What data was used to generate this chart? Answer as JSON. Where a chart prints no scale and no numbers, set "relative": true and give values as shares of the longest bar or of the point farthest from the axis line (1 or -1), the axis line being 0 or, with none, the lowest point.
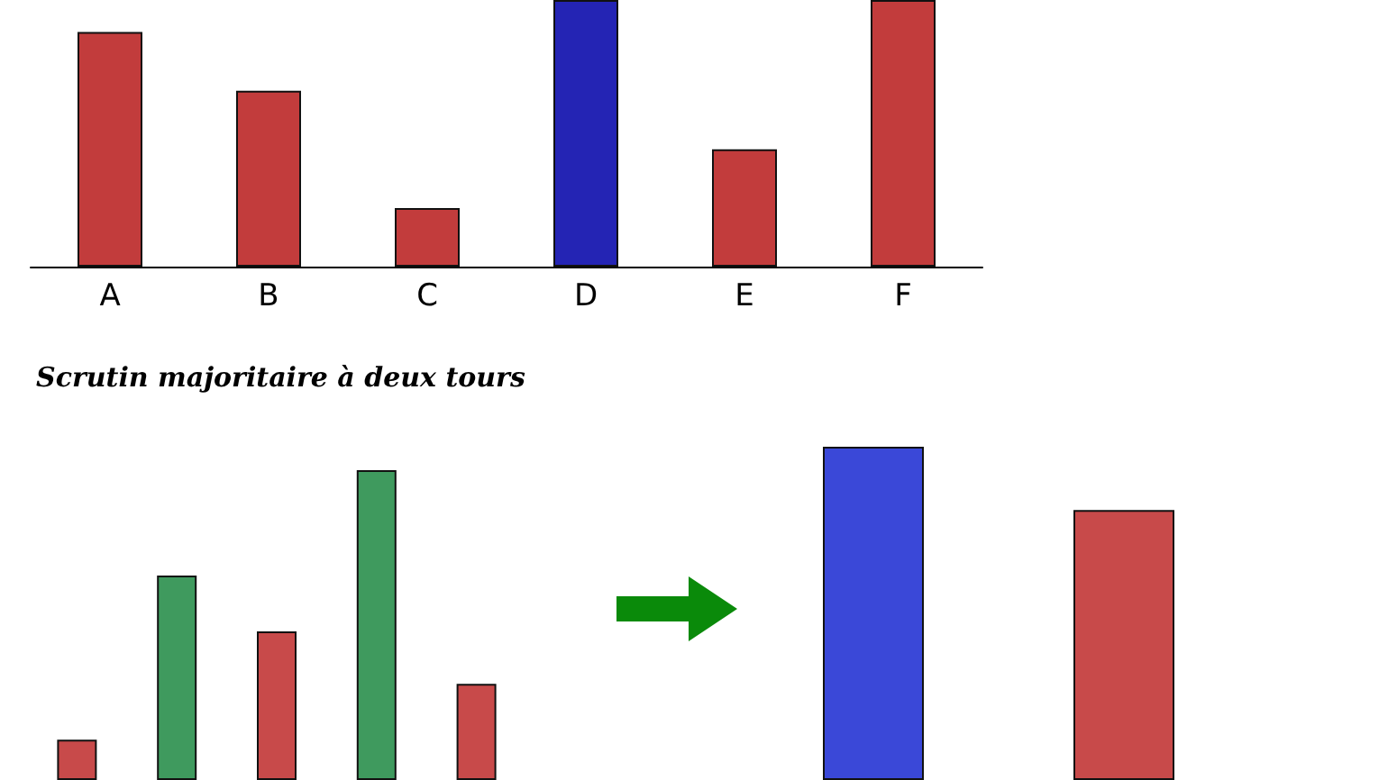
{
  "chart_data": [
    {
      "type": "bar",
      "relative": true,
      "categories": [
        "A",
        "B",
        "C",
        "D",
        "E",
        "F"
      ],
      "values": [
        0.88,
        0.66,
        0.22,
        1,
        0.44,
        1
      ],
      "colors": [
        "#c23c3c",
        "#c23c3c",
        "#c23c3c",
        "#2424b4",
        "#c23c3c",
        "#c23c3c"
      ]
    },
    {
      "type": "bar",
      "relative": true,
      "title": "Scrutin majoritaire à deux tours",
      "categories": [
        null,
        null,
        null,
        null,
        null
      ],
      "values": [
        0.13,
        0.66,
        0.48,
        1,
        0.31
      ],
      "colors": [
        "#c84a4a",
        "#3f9a5e",
        "#c84a4a",
        "#3f9a5e",
        "#c84a4a"
      ]
    },
    {
      "type": "bar",
      "relative": true,
      "categories": [
        null,
        null
      ],
      "values": [
        1,
        0.81
      ],
      "colors": [
        "#3a48d8",
        "#c84a4a"
      ]
    }
  ]
}
